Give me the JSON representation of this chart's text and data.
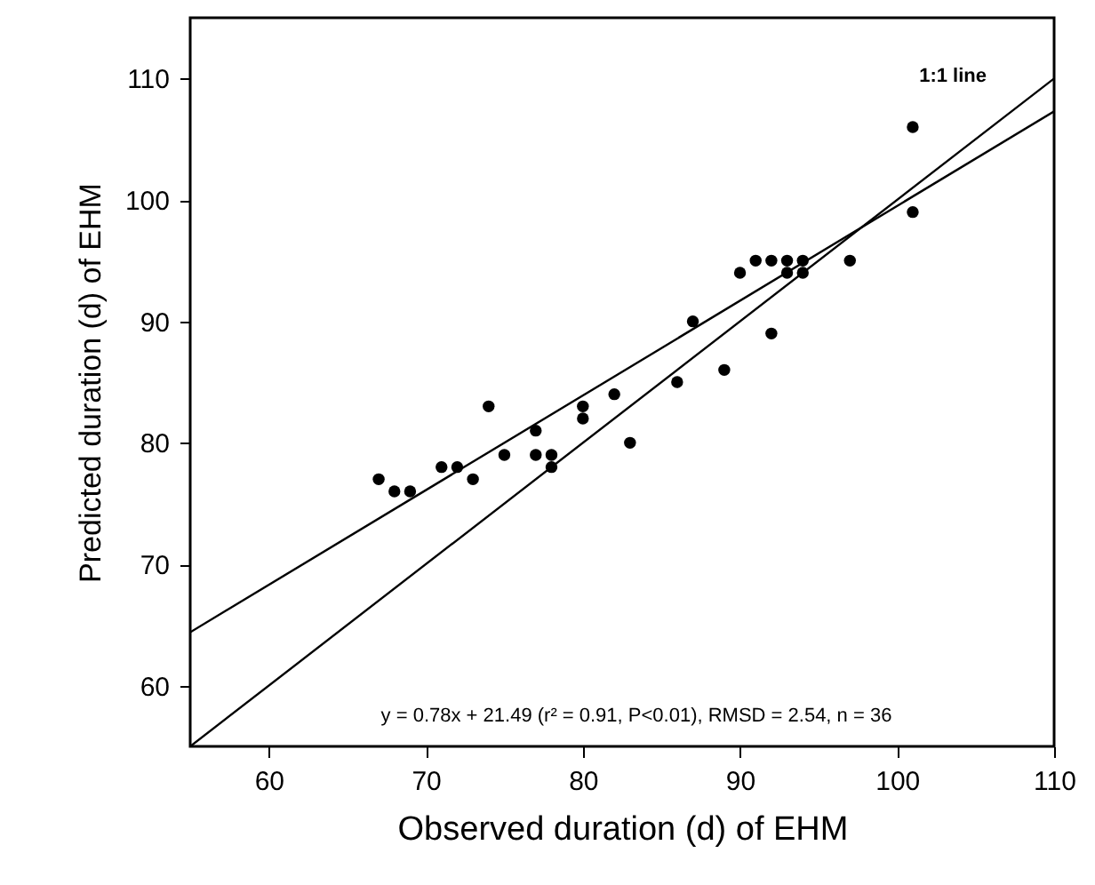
{
  "chart_data": {
    "type": "scatter",
    "xlabel": "Observed duration (d) of EHM",
    "ylabel": "Predicted duration (d) of EHM",
    "xlim": [
      55,
      110
    ],
    "ylim": [
      55,
      115
    ],
    "xticks": [
      60,
      70,
      80,
      90,
      100,
      110
    ],
    "yticks": [
      60,
      70,
      80,
      90,
      100,
      110
    ],
    "grid": false,
    "annotations": [
      "y = 0.78x + 21.49 (r² = 0.91, P<0.01), RMSD = 2.54, n = 36"
    ],
    "series": [
      {
        "color": "#000000",
        "marker": "circle",
        "x": [
          67,
          68,
          69,
          71,
          72,
          73,
          74,
          75,
          77,
          77,
          78,
          78,
          80,
          80,
          82,
          83,
          86,
          87,
          89,
          90,
          91,
          92,
          92,
          93,
          94,
          93,
          94,
          97,
          101,
          101
        ],
        "values": [
          77,
          76,
          76,
          78,
          78,
          77,
          83,
          79,
          81,
          79,
          79,
          78,
          83,
          82,
          84,
          80,
          85,
          90,
          86,
          94,
          95,
          95,
          89,
          95,
          95,
          94,
          94,
          95,
          106,
          99
        ]
      },
      {
        "type": "line",
        "name": "1:1 line",
        "color": "#000000",
        "marker": "none",
        "line_style": "solid",
        "x": [
          55,
          110
        ],
        "values": [
          55,
          110
        ]
      },
      {
        "type": "line",
        "color": "#000000",
        "marker": "none",
        "line_style": "solid",
        "x": [
          55,
          110
        ],
        "values": [
          64.4,
          107.3
        ]
      }
    ]
  }
}
